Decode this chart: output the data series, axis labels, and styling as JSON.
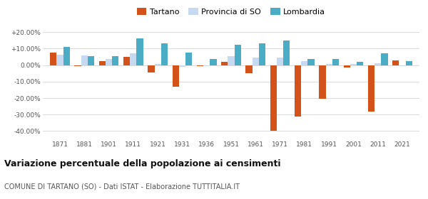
{
  "years": [
    1871,
    1881,
    1901,
    1911,
    1921,
    1931,
    1936,
    1951,
    1961,
    1971,
    1981,
    1991,
    2001,
    2011,
    2021
  ],
  "tartano": [
    7.5,
    -0.5,
    2.5,
    5.0,
    -4.5,
    -13.0,
    -0.5,
    2.0,
    -5.0,
    -40.0,
    -31.0,
    -20.5,
    -1.5,
    -28.0,
    3.0
  ],
  "provincia_so": [
    6.5,
    6.0,
    3.5,
    7.0,
    0.5,
    -1.0,
    -0.5,
    5.5,
    4.5,
    4.5,
    2.5,
    0.5,
    0.5,
    1.0,
    -0.5
  ],
  "lombardia": [
    11.0,
    5.5,
    5.5,
    16.0,
    13.0,
    7.5,
    3.5,
    12.5,
    13.0,
    15.0,
    3.5,
    3.5,
    2.0,
    7.0,
    2.5
  ],
  "tartano_color": "#d2521a",
  "provincia_color": "#c5d9f1",
  "lombardia_color": "#4bacc6",
  "title": "Variazione percentuale della popolazione ai censimenti",
  "subtitle": "COMUNE DI TARTANO (SO) - Dati ISTAT - Elaborazione TUTTITALIA.IT",
  "ylim": [
    -45,
    25
  ],
  "yticks": [
    -40,
    -30,
    -20,
    -10,
    0,
    10,
    20
  ],
  "ytick_labels": [
    "-40.00%",
    "-30.00%",
    "-20.00%",
    "-10.00%",
    "0.00%",
    "+10.00%",
    "+20.00%"
  ],
  "legend_labels": [
    "Tartano",
    "Provincia di SO",
    "Lombardia"
  ],
  "bar_width": 0.27,
  "figsize": [
    6.0,
    2.8
  ],
  "dpi": 100
}
